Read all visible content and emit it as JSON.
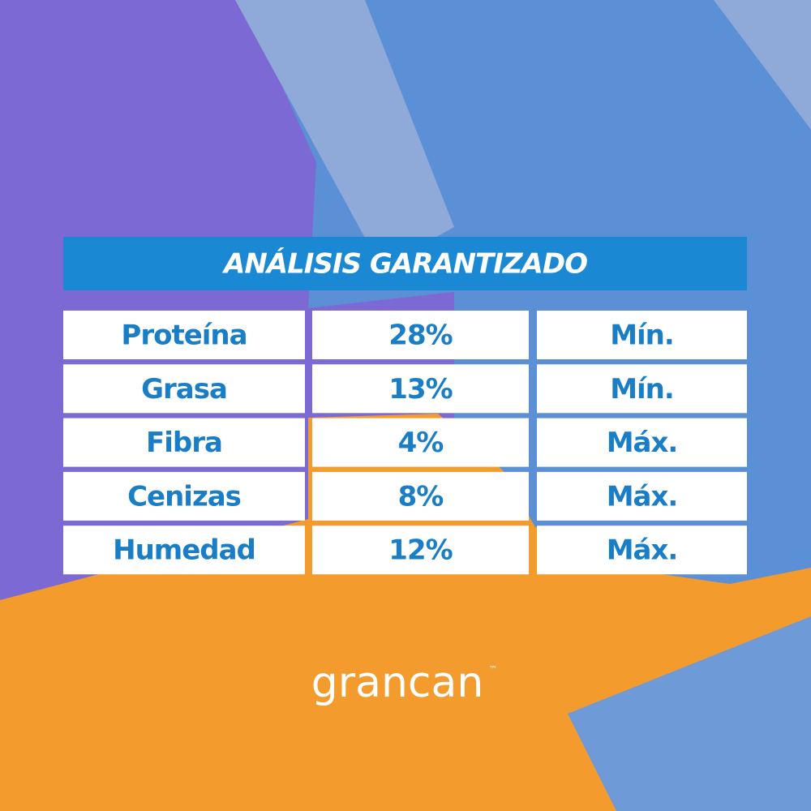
{
  "header": {
    "title": "ANÁLISIS GARANTIZADO"
  },
  "table": {
    "rows": [
      [
        "Proteína",
        "28%",
        "Mín."
      ],
      [
        "Grasa",
        "13%",
        "Mín."
      ],
      [
        "Fibra",
        "4%",
        "Máx."
      ],
      [
        "Cenizas",
        "8%",
        "Máx."
      ],
      [
        "Humedad",
        "12%",
        "Máx."
      ]
    ]
  },
  "logo": {
    "name": "grancan",
    "mark": "™"
  }
}
